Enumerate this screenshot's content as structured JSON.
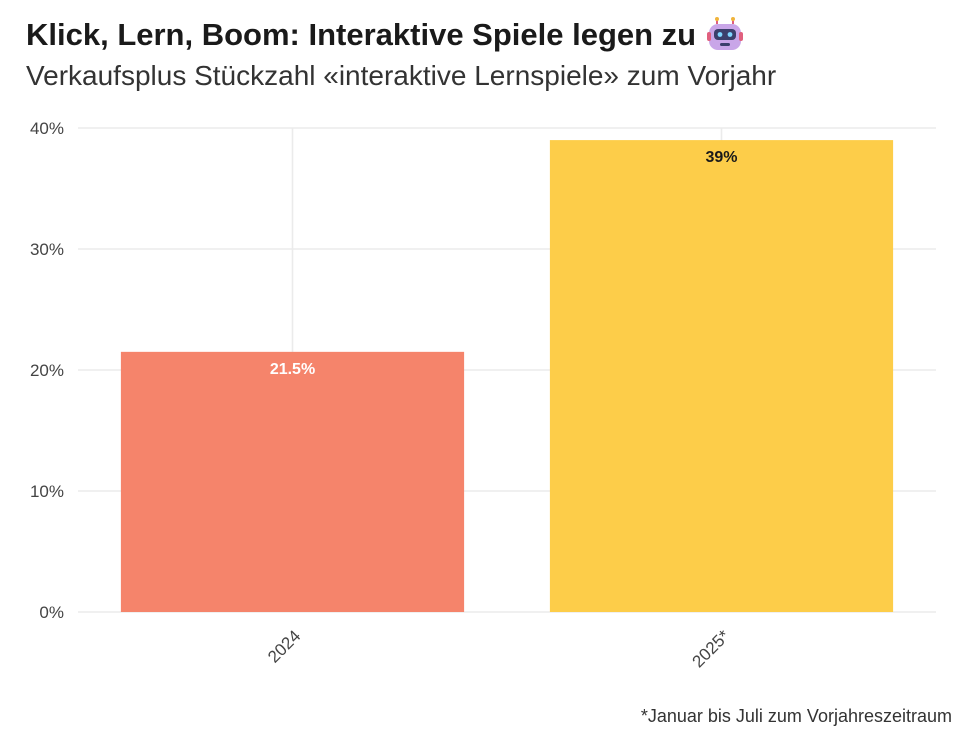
{
  "header": {
    "title": "Klick, Lern, Boom: Interaktive Spiele legen zu",
    "title_icon": "robot-icon",
    "subtitle": "Verkaufsplus Stückzahl «interaktive Lernspiele» zum Vorjahr"
  },
  "caption": "*Januar bis Juli zum Vorjahreszeitraum",
  "chart_data": {
    "type": "bar",
    "categories": [
      "2024",
      "2025*"
    ],
    "values": [
      21.5,
      39
    ],
    "value_labels": [
      "21.5%",
      "39%"
    ],
    "bar_colors": [
      "#f5846b",
      "#fdcd49"
    ],
    "label_colors": [
      "#ffffff",
      "#1a1a1a"
    ],
    "ylim": [
      0,
      40
    ],
    "yticks": [
      0,
      10,
      20,
      30,
      40
    ],
    "ytick_labels": [
      "0%",
      "10%",
      "20%",
      "30%",
      "40%"
    ],
    "grid": true,
    "xlabel": "",
    "ylabel": ""
  }
}
